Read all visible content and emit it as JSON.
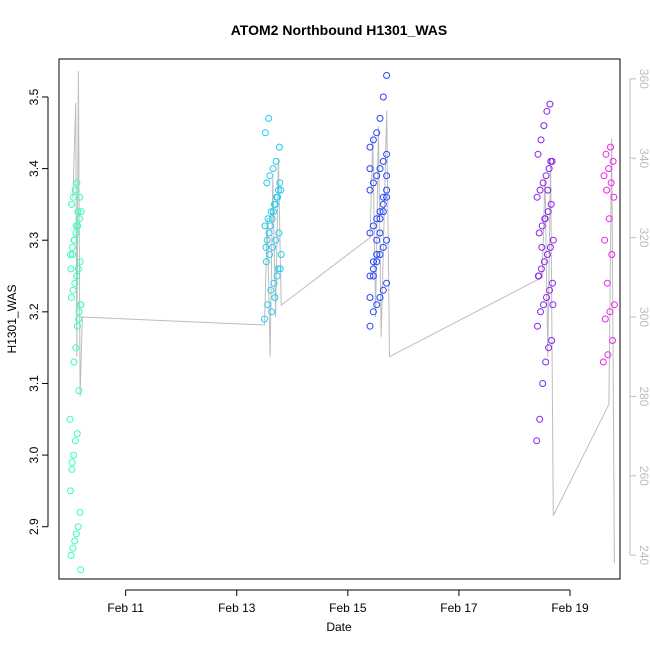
{
  "chart_data": {
    "type": "scatter",
    "title": "ATOM2 Northbound H1301_WAS",
    "xlabel": "Date",
    "ylabel": "H1301_WAS",
    "x_unit": "days in February",
    "xlim": [
      9.8,
      19.9
    ],
    "ylim": [
      2.827,
      3.553
    ],
    "x_tick_values": [
      11,
      13,
      15,
      17,
      19
    ],
    "x_tick_labels": [
      "Feb 11",
      "Feb 13",
      "Feb 15",
      "Feb 17",
      "Feb 19"
    ],
    "y_tick_values": [
      2.9,
      3.0,
      3.1,
      3.2,
      3.3,
      3.4,
      3.5
    ],
    "y_tick_labels": [
      "2.9",
      "3.0",
      "3.1",
      "3.2",
      "3.3",
      "3.4",
      "3.5"
    ],
    "secondary_axis": {
      "ylim": [
        234,
        365
      ],
      "tick_values": [
        240,
        260,
        280,
        300,
        320,
        340,
        360
      ],
      "tick_labels": [
        "240",
        "260",
        "280",
        "300",
        "320",
        "340",
        "360"
      ],
      "line_color": "#bdbdbd"
    },
    "grid": false,
    "legend": "none",
    "flights": [
      {
        "color": "#33ffbb",
        "x_start": 10.0,
        "x_end": 10.2,
        "points": [
          3.05,
          2.98,
          3.0,
          3.02,
          3.03,
          3.09,
          2.84,
          2.86,
          2.87,
          2.88,
          2.89,
          2.9,
          2.92,
          2.95,
          2.99,
          3.13,
          3.15,
          3.18,
          3.2,
          3.21,
          3.22,
          3.23,
          3.24,
          3.25,
          3.26,
          3.27,
          3.28,
          3.29,
          3.3,
          3.31,
          3.32,
          3.33,
          3.34,
          3.35,
          3.36,
          3.37,
          3.38,
          3.19,
          3.21,
          3.26,
          3.28,
          3.3,
          3.32,
          3.34,
          3.36
        ]
      },
      {
        "color": "#22ccee",
        "x_start": 13.5,
        "x_end": 13.8,
        "points": [
          3.19,
          3.21,
          3.23,
          3.24,
          3.25,
          3.26,
          3.27,
          3.28,
          3.29,
          3.3,
          3.31,
          3.32,
          3.33,
          3.34,
          3.35,
          3.36,
          3.37,
          3.38,
          3.39,
          3.4,
          3.41,
          3.43,
          3.45,
          3.47,
          3.2,
          3.22,
          3.26,
          3.28,
          3.3,
          3.32,
          3.34,
          3.36,
          3.38,
          3.29,
          3.31,
          3.33,
          3.35,
          3.37
        ]
      },
      {
        "color": "#2244ff",
        "x_start": 15.4,
        "x_end": 15.75,
        "points": [
          3.18,
          3.2,
          3.21,
          3.22,
          3.23,
          3.24,
          3.25,
          3.26,
          3.27,
          3.28,
          3.29,
          3.3,
          3.31,
          3.32,
          3.33,
          3.34,
          3.35,
          3.36,
          3.37,
          3.38,
          3.39,
          3.4,
          3.41,
          3.42,
          3.43,
          3.44,
          3.45,
          3.47,
          3.5,
          3.53,
          3.22,
          3.25,
          3.28,
          3.31,
          3.34,
          3.37,
          3.4,
          3.27,
          3.3,
          3.33,
          3.36,
          3.39
        ]
      },
      {
        "color": "#8822ee",
        "x_start": 18.4,
        "x_end": 18.7,
        "points": [
          3.02,
          3.05,
          3.1,
          3.13,
          3.15,
          3.16,
          3.18,
          3.2,
          3.21,
          3.22,
          3.23,
          3.24,
          3.25,
          3.26,
          3.27,
          3.28,
          3.29,
          3.3,
          3.31,
          3.32,
          3.33,
          3.34,
          3.35,
          3.36,
          3.37,
          3.38,
          3.39,
          3.4,
          3.41,
          3.42,
          3.44,
          3.46,
          3.48,
          3.49,
          3.21,
          3.25,
          3.29,
          3.33,
          3.37,
          3.41
        ]
      },
      {
        "color": "#ee22ee",
        "x_start": 19.6,
        "x_end": 19.8,
        "points": [
          3.13,
          3.14,
          3.16,
          3.19,
          3.2,
          3.21,
          3.24,
          3.28,
          3.3,
          3.33,
          3.36,
          3.37,
          3.38,
          3.39,
          3.4,
          3.41,
          3.42,
          3.43
        ]
      }
    ],
    "secondary_series": {
      "name": "",
      "color": "#bdbdbd",
      "points": [
        [
          10.05,
          330
        ],
        [
          10.1,
          354
        ],
        [
          10.12,
          290
        ],
        [
          10.15,
          362
        ],
        [
          10.18,
          280
        ],
        [
          10.22,
          300
        ],
        [
          13.5,
          298
        ],
        [
          13.55,
          325
        ],
        [
          13.6,
          290
        ],
        [
          13.65,
          335
        ],
        [
          13.7,
          300
        ],
        [
          13.75,
          340
        ],
        [
          13.8,
          303
        ],
        [
          15.4,
          320
        ],
        [
          15.45,
          345
        ],
        [
          15.5,
          300
        ],
        [
          15.55,
          348
        ],
        [
          15.6,
          295
        ],
        [
          15.7,
          352
        ],
        [
          15.75,
          290
        ],
        [
          18.5,
          310
        ],
        [
          18.55,
          335
        ],
        [
          18.6,
          290
        ],
        [
          18.65,
          340
        ],
        [
          18.7,
          250
        ],
        [
          19.7,
          278
        ],
        [
          19.75,
          345
        ],
        [
          19.8,
          238
        ]
      ]
    }
  }
}
